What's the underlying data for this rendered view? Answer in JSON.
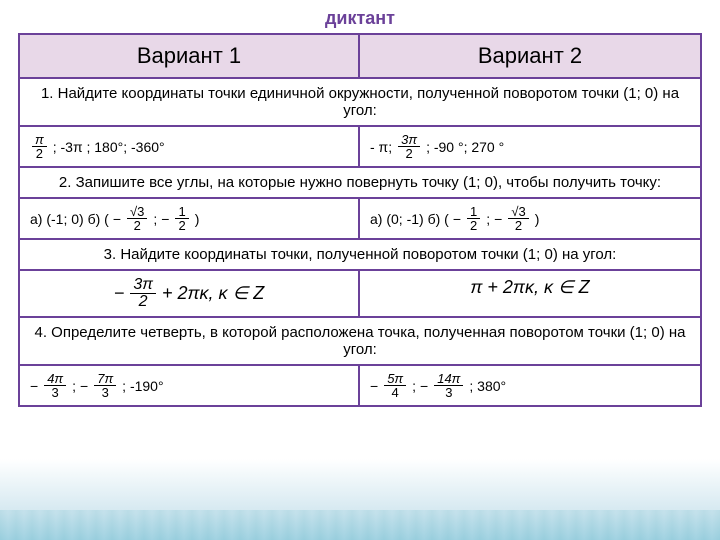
{
  "title": "диктант",
  "colors": {
    "border": "#6b4199",
    "header_bg": "#e8d8e8",
    "title_color": "#6b4199",
    "wave_color": "#a8d4e0"
  },
  "headers": {
    "variant1": "Вариант 1",
    "variant2": "Вариант 2"
  },
  "q1": {
    "prompt": "1. Найдите координаты точки единичной окружности, полученной поворотом точки (1; 0) на угол:",
    "v1_text1": ";   -3π ;    180°;      -360°",
    "v2_text1": "- π;",
    "v2_text2": ";    -90 °;   270 °",
    "pi": "π",
    "two": "2",
    "three_pi": "3π"
  },
  "q2": {
    "prompt": "2. Запишите все углы, на которые нужно повернуть точку (1; 0), чтобы получить точку:",
    "v1_text1": "а) (-1; 0)   б)  (",
    "v1_text2": " ;",
    "v1_text3": ")",
    "v2_text1": "а) (0; -1)  б)  (",
    "v2_text2": " ;",
    "v2_text3": ")",
    "sqrt3": "√3",
    "one": "1",
    "two": "2"
  },
  "q3": {
    "prompt": "3. Найдите координаты точки, полученной поворотом точки (1; 0) на  угол:",
    "v1_pre": "−",
    "v1_frac_num": "3π",
    "v1_frac_den": "2",
    "v1_post": "+ 2πκ, κ ∈ Z",
    "v2_text": "π + 2πκ, κ ∈ Z"
  },
  "q4": {
    "prompt": "4. Определите четверть, в которой расположена точка, полученная поворотом точки (1; 0) на угол:",
    "v1_f1_num": "4π",
    "v1_f1_den": "3",
    "v1_f2_num": "7π",
    "v1_f2_den": "3",
    "v1_post": ";     -190°",
    "v2_f1_num": "5π",
    "v2_f1_den": "4",
    "v2_f2_num": "14π",
    "v2_f2_den": "3",
    "v2_post": ";     380°"
  }
}
